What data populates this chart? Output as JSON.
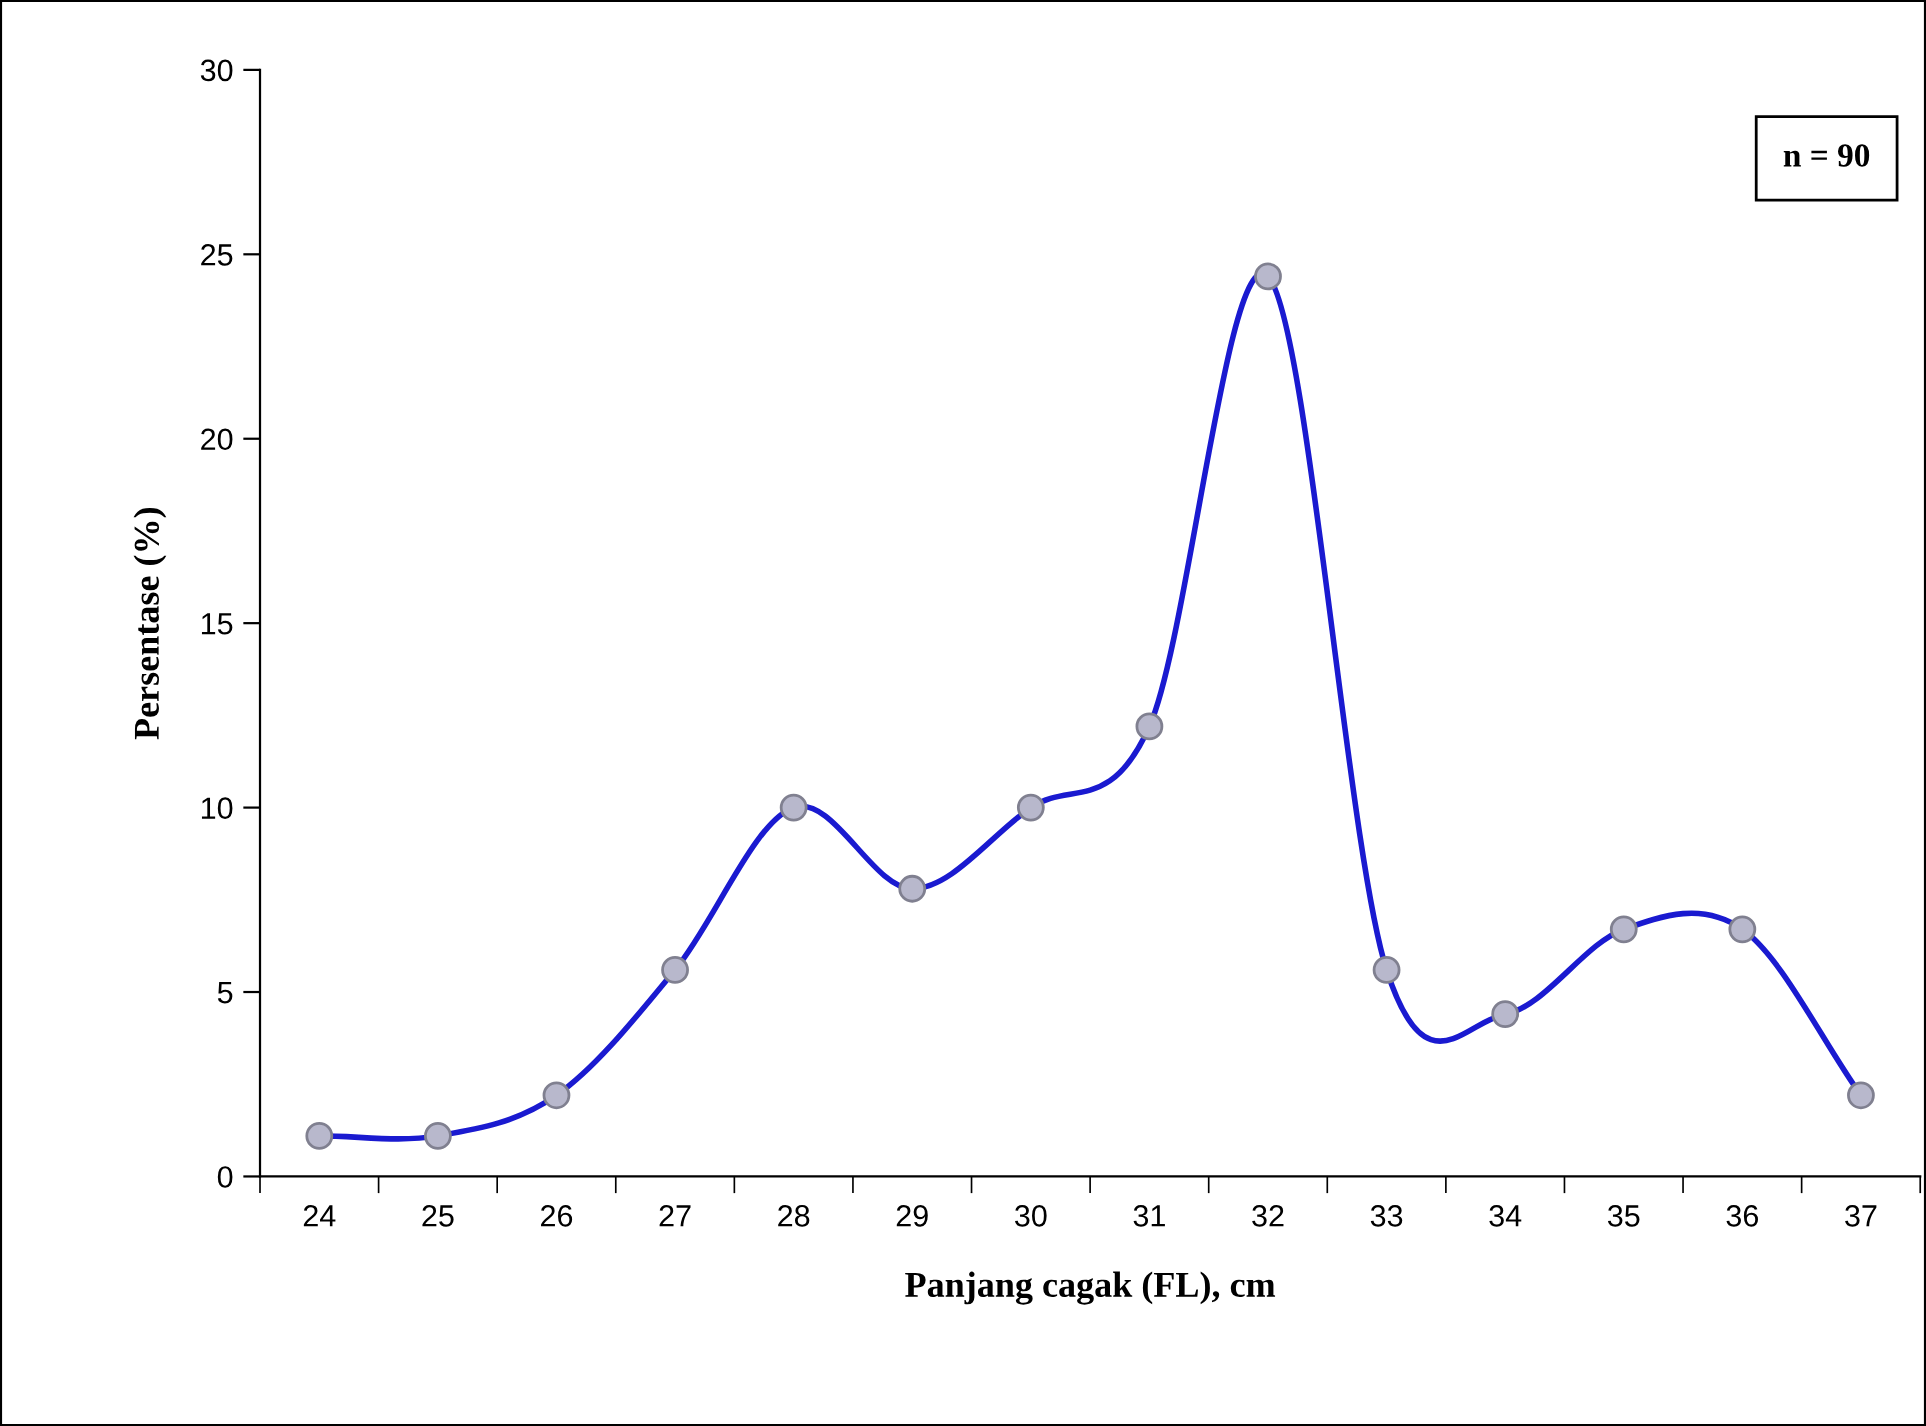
{
  "chart_data": {
    "type": "line",
    "xlabel": "Panjang cagak (FL), cm",
    "ylabel": "Persentase (%)",
    "categories": [
      "24",
      "25",
      "26",
      "27",
      "28",
      "29",
      "30",
      "31",
      "32",
      "33",
      "34",
      "35",
      "36",
      "37"
    ],
    "values": [
      1.1,
      1.1,
      2.2,
      5.6,
      10.0,
      7.8,
      10.0,
      12.2,
      24.4,
      5.6,
      4.4,
      6.7,
      6.7,
      2.2
    ],
    "color": "#1a1ad0",
    "marker": "circle",
    "line_style": "solid",
    "ylim": [
      0,
      30
    ],
    "yticks": [
      0,
      5,
      10,
      15,
      20,
      25,
      30
    ],
    "grid": false,
    "annotations": [
      "n = 90"
    ]
  }
}
